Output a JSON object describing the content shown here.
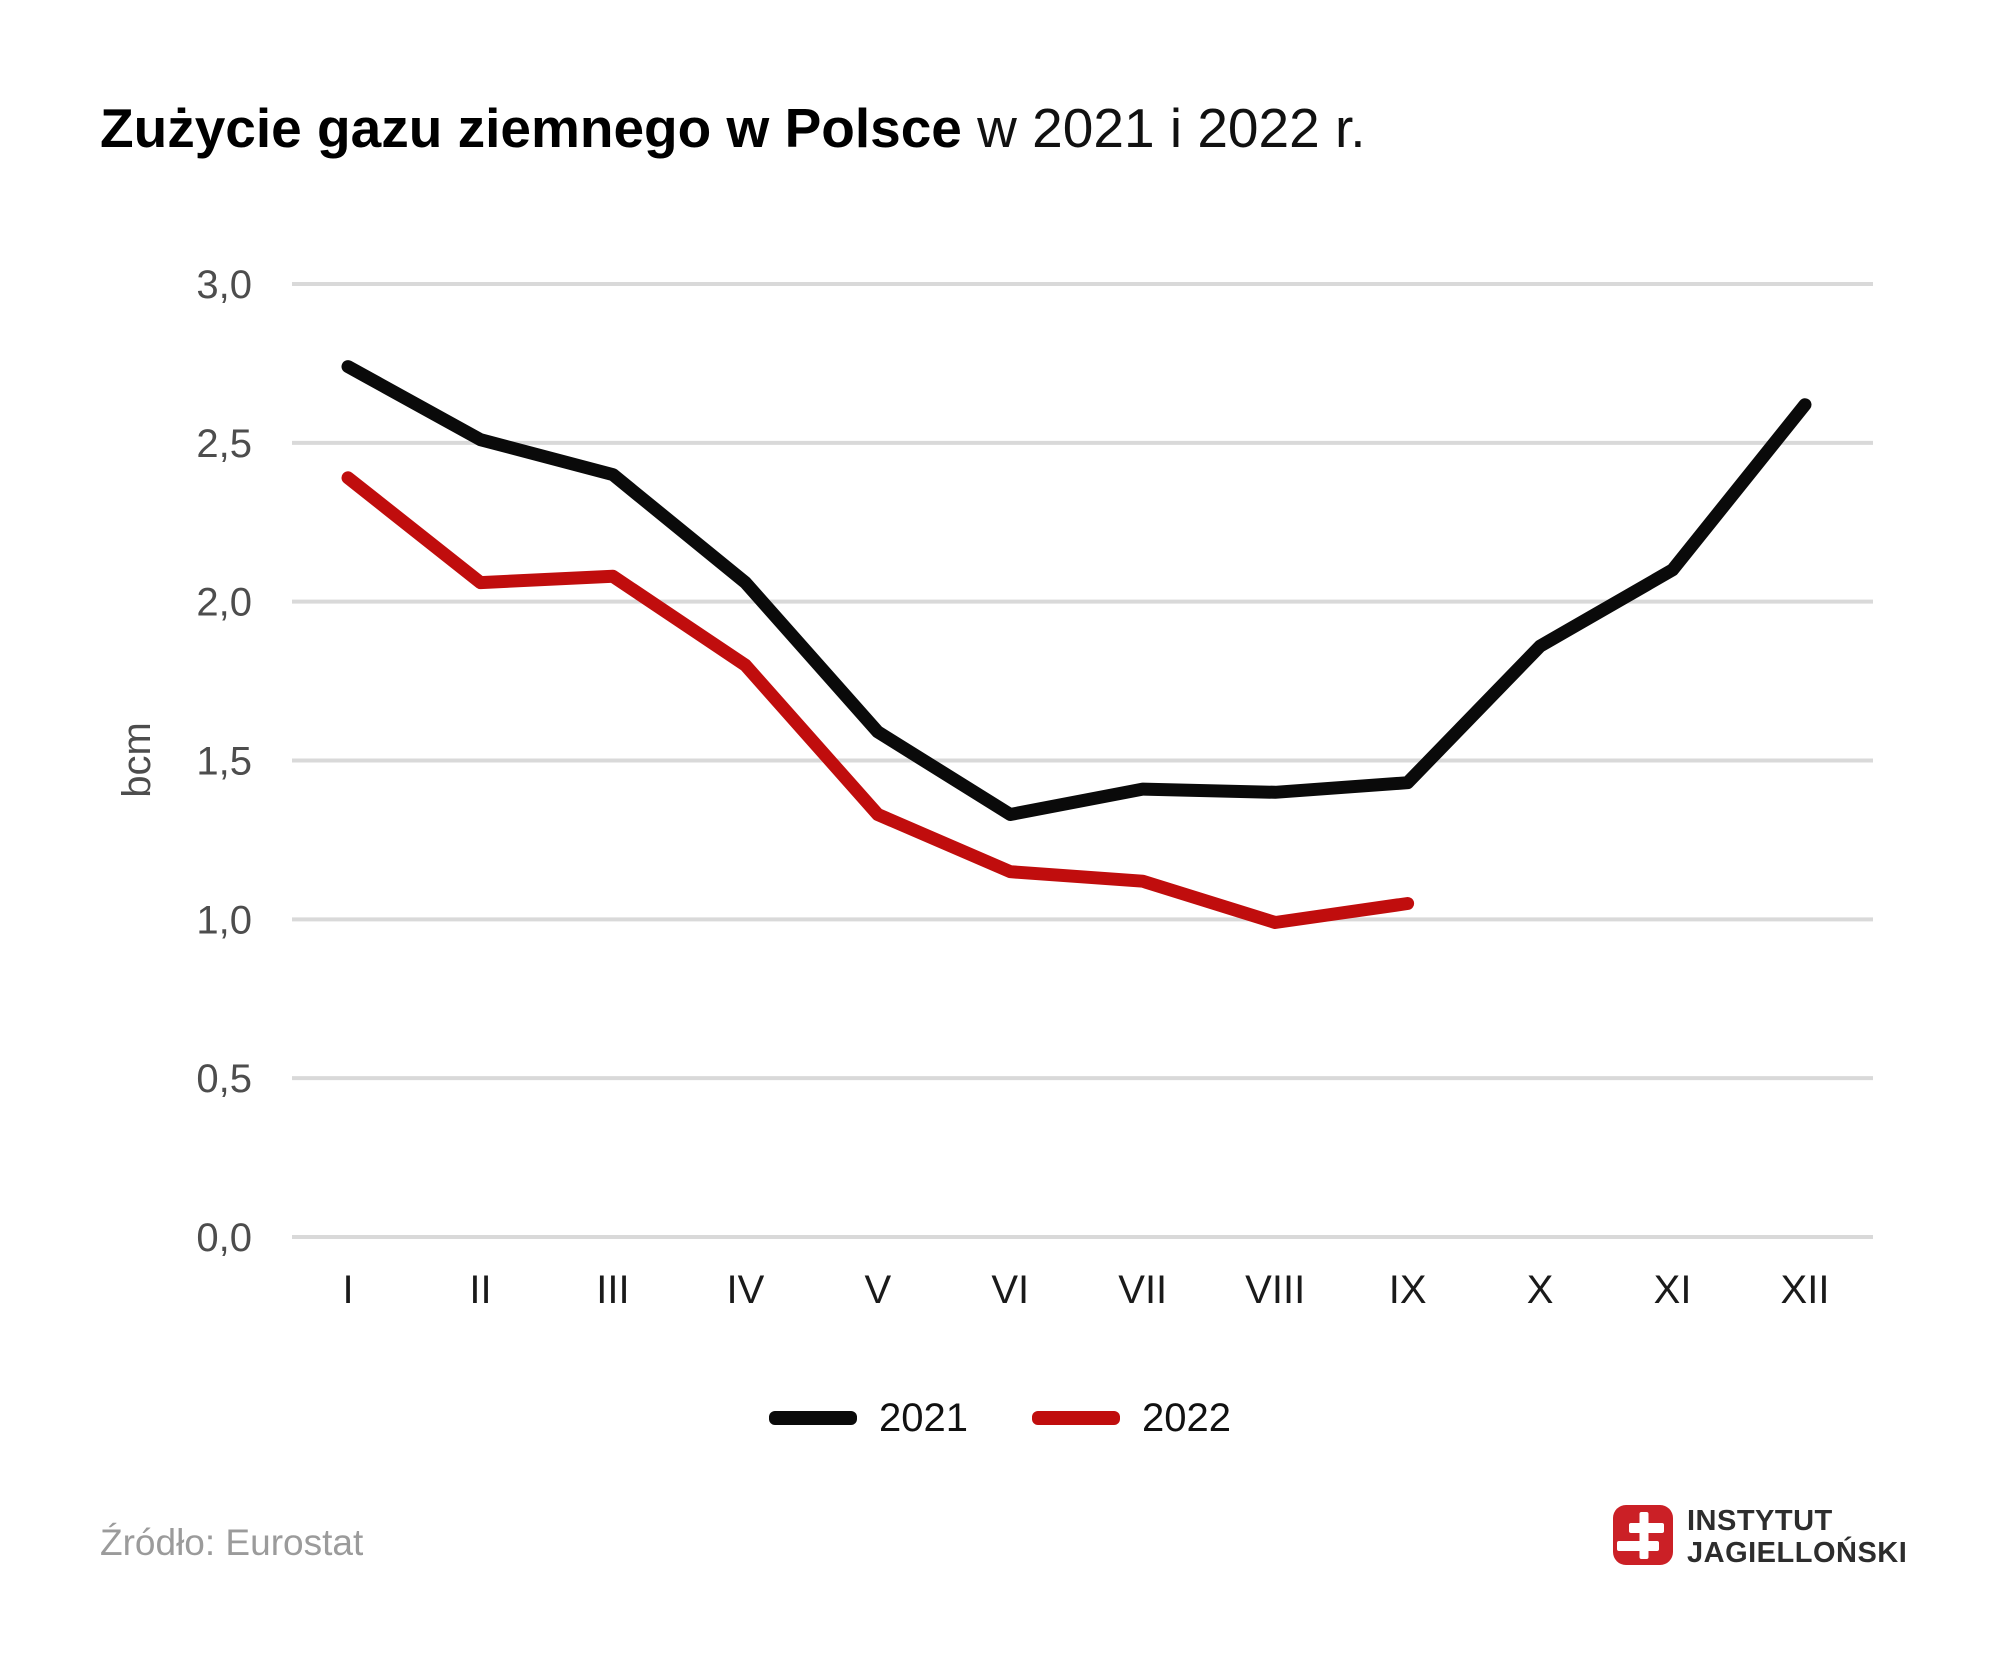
{
  "title": {
    "bold": "Zużycie gazu ziemnego w Polsce",
    "regular": " w 2021 i 2022 r."
  },
  "chart_data": {
    "type": "line",
    "categories": [
      "I",
      "II",
      "III",
      "IV",
      "V",
      "VI",
      "VII",
      "VIII",
      "IX",
      "X",
      "XI",
      "XII"
    ],
    "series": [
      {
        "name": "2021",
        "color": "#0a0a0a",
        "values": [
          2.74,
          2.51,
          2.4,
          2.06,
          1.59,
          1.33,
          1.41,
          1.4,
          1.43,
          1.86,
          2.1,
          2.62
        ]
      },
      {
        "name": "2022",
        "color": "#c00d0d",
        "values": [
          2.39,
          2.06,
          2.08,
          1.8,
          1.33,
          1.15,
          1.12,
          0.99,
          1.05
        ]
      }
    ],
    "xlabel": "",
    "ylabel": "bcm",
    "yticks": [
      "3,0",
      "2,5",
      "2,0",
      "1,5",
      "1,0",
      "0,5",
      "0,0"
    ],
    "ytick_values": [
      3.0,
      2.5,
      2.0,
      1.5,
      1.0,
      0.5,
      0.0
    ],
    "ylim": [
      0,
      3
    ],
    "grid": true,
    "legend_position": "bottom"
  },
  "source": "Źródło: Eurostat",
  "logo": {
    "line1": "INSTYTUT",
    "line2": "JAGIELLOŃSKI",
    "icon": "jagiellonian-double-cross-icon",
    "accent": "#cb2026"
  },
  "colors": {
    "grid": "#d9d9d9",
    "axis_text": "#4d4d4d",
    "xaxis_text": "#1a1a1a",
    "series_2021": "#0a0a0a",
    "series_2022": "#c00d0d",
    "source_text": "#9b9b9b"
  }
}
